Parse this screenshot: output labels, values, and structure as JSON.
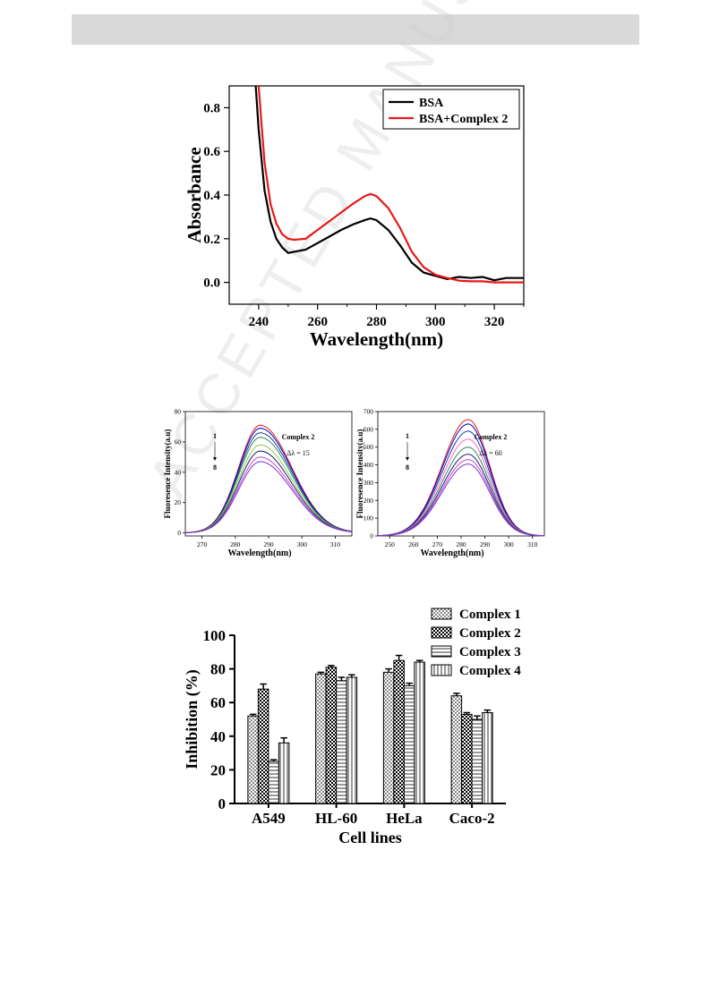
{
  "header": {
    "text": ""
  },
  "watermark": "ACCEPTED MANUSCRIPT",
  "chart_data": [
    {
      "type": "line",
      "title": "",
      "xlabel": "Wavelength(nm)",
      "ylabel": "Absorbance",
      "xlim": [
        230,
        330
      ],
      "ylim": [
        -0.1,
        0.9
      ],
      "xticks": [
        240,
        260,
        280,
        300,
        320
      ],
      "yticks": [
        0.0,
        0.2,
        0.4,
        0.6,
        0.8
      ],
      "xtick_labels": [
        "240",
        "260",
        "280",
        "300",
        "320"
      ],
      "ytick_labels": [
        "0.0",
        "0.2",
        "0.4",
        "0.6",
        "0.8"
      ],
      "legend_position": "top-right",
      "series": [
        {
          "name": "BSA",
          "color": "#000000",
          "x": [
            239,
            240,
            242,
            244,
            246,
            248,
            250,
            252,
            256,
            260,
            264,
            268,
            272,
            276,
            278,
            280,
            284,
            288,
            292,
            296,
            300,
            304,
            308,
            312,
            316,
            320,
            324,
            330
          ],
          "y": [
            0.9,
            0.7,
            0.42,
            0.28,
            0.2,
            0.16,
            0.135,
            0.14,
            0.15,
            0.18,
            0.21,
            0.24,
            0.265,
            0.285,
            0.293,
            0.285,
            0.24,
            0.17,
            0.09,
            0.045,
            0.03,
            0.015,
            0.025,
            0.02,
            0.025,
            0.01,
            0.02,
            0.02
          ]
        },
        {
          "name": "BSA+Complex 2",
          "color": "#e8191b",
          "x": [
            240,
            241,
            242,
            244,
            246,
            248,
            250,
            252,
            256,
            260,
            264,
            268,
            272,
            276,
            278,
            280,
            284,
            288,
            292,
            296,
            300,
            304,
            308,
            312,
            316,
            320,
            324,
            330
          ],
          "y": [
            0.9,
            0.72,
            0.55,
            0.36,
            0.27,
            0.22,
            0.2,
            0.195,
            0.2,
            0.24,
            0.28,
            0.32,
            0.36,
            0.395,
            0.405,
            0.395,
            0.34,
            0.25,
            0.14,
            0.07,
            0.035,
            0.02,
            0.008,
            0.005,
            0.005,
            0.0,
            0.0,
            0.0
          ]
        }
      ]
    },
    {
      "type": "line",
      "title": "",
      "annotation": "Complex 2",
      "annotation2": "Δλ = 15",
      "arrow_top": "1",
      "arrow_bottom": "8",
      "xlabel": "Wavelength(nm)",
      "ylabel": "Fluoresence Intensity(a.u)",
      "xlim": [
        265,
        315
      ],
      "ylim": [
        -2,
        80
      ],
      "xticks": [
        270,
        280,
        290,
        300,
        310
      ],
      "yticks": [
        0,
        20,
        40,
        60,
        80
      ],
      "xtick_labels": [
        "270",
        "280",
        "290",
        "300",
        "310"
      ],
      "ytick_labels": [
        "0",
        "20",
        "40",
        "60",
        "80"
      ],
      "peak_x": 287.5,
      "peak_values": [
        71,
        69,
        66,
        63,
        58,
        54,
        50,
        47
      ],
      "series_colors": [
        "#e8191b",
        "#0000cc",
        "#1f3f8f",
        "#2e8b57",
        "#88cc44",
        "#1a1a7a",
        "#cc44cc",
        "#7a33cc"
      ]
    },
    {
      "type": "line",
      "title": "",
      "annotation": "Complex 2",
      "annotation2": "Δλ = 60",
      "arrow_top": "1",
      "arrow_bottom": "8",
      "xlabel": "Wavelength(nm)",
      "ylabel": "Fluoresence Intensity(a.u)",
      "xlim": [
        245,
        315
      ],
      "ylim": [
        0,
        700
      ],
      "xticks": [
        250,
        260,
        270,
        280,
        290,
        300,
        310
      ],
      "yticks": [
        0,
        100,
        200,
        300,
        400,
        500,
        600,
        700
      ],
      "xtick_labels": [
        "250",
        "260",
        "270",
        "280",
        "290",
        "300",
        "310"
      ],
      "ytick_labels": [
        "0",
        "100",
        "200",
        "300",
        "400",
        "500",
        "600",
        "700"
      ],
      "peak_x": 283,
      "peak_values": [
        655,
        630,
        590,
        545,
        500,
        460,
        430,
        405
      ],
      "series_colors": [
        "#e8191b",
        "#0000cc",
        "#1f3f8f",
        "#ff66cc",
        "#2e8b57",
        "#1a1a7a",
        "#cc44cc",
        "#7a33cc"
      ]
    },
    {
      "type": "bar",
      "title": "",
      "xlabel": "Cell lines",
      "ylabel": "Inhibition (%)",
      "ylim": [
        0,
        100
      ],
      "yticks": [
        0,
        20,
        40,
        60,
        80,
        100
      ],
      "ytick_labels": [
        "0",
        "20",
        "40",
        "60",
        "80",
        "100"
      ],
      "categories": [
        "A549",
        "HL-60",
        "HeLa",
        "Caco-2"
      ],
      "legend_position": "top-right",
      "series": [
        {
          "name": "Complex 1",
          "pattern": "dots",
          "values": [
            52,
            77,
            78,
            64
          ],
          "errors": [
            1,
            1,
            2,
            1.5
          ]
        },
        {
          "name": "Complex 2",
          "pattern": "checker",
          "values": [
            68,
            81,
            85,
            53
          ],
          "errors": [
            3,
            1,
            3,
            1
          ]
        },
        {
          "name": "Complex 3",
          "pattern": "hlines",
          "values": [
            25,
            73,
            70,
            50
          ],
          "errors": [
            1,
            2,
            1.5,
            2
          ]
        },
        {
          "name": "Complex 4",
          "pattern": "vlines",
          "values": [
            36,
            75,
            84,
            54
          ],
          "errors": [
            3,
            1.5,
            1,
            1.5
          ]
        }
      ]
    }
  ]
}
